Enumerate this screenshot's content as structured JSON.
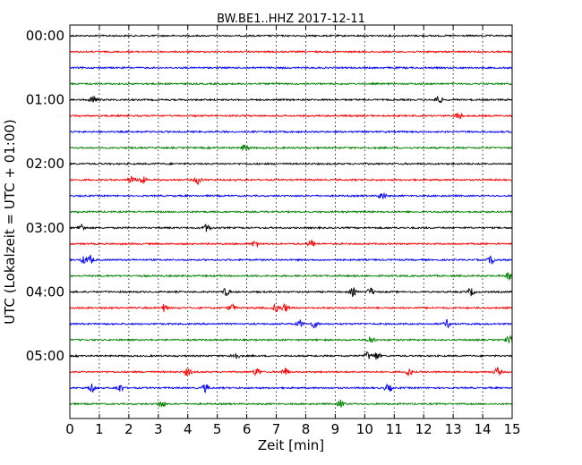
{
  "chart_data": {
    "type": "line",
    "title": "BW.BE1..HHZ 2017-12-11",
    "xlabel": "Zeit  [min]",
    "ylabel": "UTC (Lokalzeit = UTC + 01:00)",
    "xlim": [
      0,
      15
    ],
    "x_ticks": [
      "0",
      "1",
      "2",
      "3",
      "4",
      "5",
      "6",
      "7",
      "8",
      "9",
      "10",
      "11",
      "12",
      "13",
      "14",
      "15"
    ],
    "y_ticks": [
      "00:00",
      "01:00",
      "02:00",
      "03:00",
      "04:00",
      "05:00"
    ],
    "grid": {
      "x": true,
      "y": false
    },
    "trace_interval_minutes": 15,
    "trace_count": 24,
    "trace_colors": [
      "#000000",
      "#ff0000",
      "#0000ff",
      "#008000"
    ],
    "events": [
      {
        "trace": 4,
        "minutes": [
          0.8,
          12.5
        ]
      },
      {
        "trace": 5,
        "minutes": [
          13.2
        ]
      },
      {
        "trace": 7,
        "minutes": [
          5.95
        ]
      },
      {
        "trace": 9,
        "minutes": [
          2.1,
          2.45,
          4.35
        ]
      },
      {
        "trace": 10,
        "minutes": [
          10.6
        ]
      },
      {
        "trace": 12,
        "minutes": [
          0.4,
          4.65
        ]
      },
      {
        "trace": 13,
        "minutes": [
          6.3,
          8.2
        ]
      },
      {
        "trace": 14,
        "minutes": [
          0.5,
          0.7,
          14.3
        ]
      },
      {
        "trace": 15,
        "minutes": [
          14.9
        ]
      },
      {
        "trace": 16,
        "minutes": [
          5.3,
          9.6,
          10.2,
          13.6
        ]
      },
      {
        "trace": 17,
        "minutes": [
          3.2,
          5.5,
          7.0,
          7.3
        ]
      },
      {
        "trace": 18,
        "minutes": [
          7.8,
          8.3,
          12.8
        ]
      },
      {
        "trace": 19,
        "minutes": [
          10.2,
          14.9
        ]
      },
      {
        "trace": 20,
        "minutes": [
          5.6,
          10.1,
          10.4
        ]
      },
      {
        "trace": 21,
        "minutes": [
          4.0,
          6.35,
          7.3,
          11.5,
          14.5
        ]
      },
      {
        "trace": 22,
        "minutes": [
          0.75,
          1.7,
          4.6,
          10.8
        ]
      },
      {
        "trace": 23,
        "minutes": [
          3.1,
          9.2
        ]
      }
    ]
  }
}
